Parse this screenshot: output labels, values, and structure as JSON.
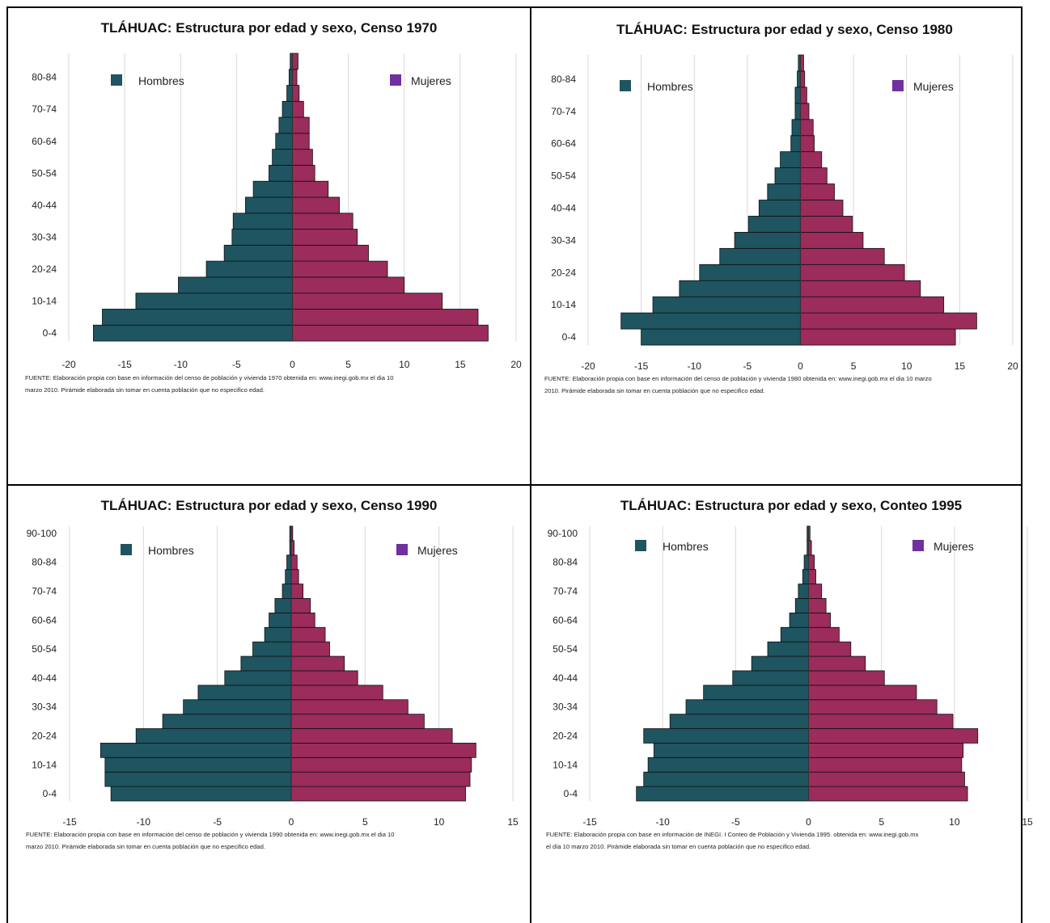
{
  "colors": {
    "hombres": "#1e5560",
    "mujeres": "#9b2c5c",
    "legend_mujeres": "#7030a0"
  },
  "chart_data": [
    {
      "type": "bar",
      "title": "TLÁHUAC: Estructura por edad y sexo, Censo 1970",
      "legend": [
        "Hombres",
        "Mujeres"
      ],
      "xlim": [
        -20,
        20
      ],
      "xticks": [
        -20,
        -15,
        -10,
        -5,
        0,
        5,
        10,
        15,
        20
      ],
      "yticklabels": [
        "0-4",
        "10-14",
        "20-24",
        "30-34",
        "40-44",
        "50-54",
        "60-64",
        "70-74",
        "80-84"
      ],
      "categories": [
        "0-4",
        "5-9",
        "10-14",
        "15-19",
        "20-24",
        "25-29",
        "30-34",
        "35-39",
        "40-44",
        "45-49",
        "50-54",
        "55-59",
        "60-64",
        "65-69",
        "70-74",
        "75-79",
        "80-84",
        "85+"
      ],
      "series": [
        {
          "name": "Hombres",
          "values": [
            17.8,
            17.0,
            14.0,
            10.2,
            7.7,
            6.1,
            5.4,
            5.3,
            4.2,
            3.5,
            2.1,
            1.8,
            1.5,
            1.2,
            0.9,
            0.5,
            0.3,
            0.2
          ]
        },
        {
          "name": "Mujeres",
          "values": [
            17.5,
            16.6,
            13.4,
            10.0,
            8.5,
            6.8,
            5.8,
            5.4,
            4.2,
            3.2,
            2.0,
            1.8,
            1.5,
            1.5,
            1.0,
            0.6,
            0.4,
            0.5
          ]
        }
      ],
      "source": [
        "FUENTE: Elaboración propia con base en información del censo de población y vivienda 1970 obtenida en: www.inegi.gob.mx el dia 10",
        "marzo 2010. Pirámide elaborada sin tomar en cuenta población que no especifico edad."
      ]
    },
    {
      "type": "bar",
      "title": "TLÁHUAC: Estructura por edad y sexo, Censo 1980",
      "legend": [
        "Hombres",
        "Mujeres"
      ],
      "xlim": [
        -20,
        20
      ],
      "xticks": [
        -20,
        -15,
        -10,
        -5,
        0,
        5,
        10,
        15,
        20
      ],
      "yticklabels": [
        "0-4",
        "10-14",
        "20-24",
        "30-34",
        "40-44",
        "50-54",
        "60-64",
        "70-74",
        "80-84"
      ],
      "categories": [
        "0-4",
        "5-9",
        "10-14",
        "15-19",
        "20-24",
        "25-29",
        "30-34",
        "35-39",
        "40-44",
        "45-49",
        "50-54",
        "55-59",
        "60-64",
        "65-69",
        "70-74",
        "75-79",
        "80-84",
        "85+"
      ],
      "series": [
        {
          "name": "Hombres",
          "values": [
            15.0,
            16.9,
            13.9,
            11.4,
            9.5,
            7.6,
            6.2,
            4.9,
            3.9,
            3.1,
            2.4,
            1.9,
            0.9,
            0.8,
            0.5,
            0.5,
            0.3,
            0.2
          ]
        },
        {
          "name": "Mujeres",
          "values": [
            14.6,
            16.6,
            13.5,
            11.3,
            9.8,
            7.9,
            5.9,
            4.9,
            4.0,
            3.2,
            2.5,
            2.0,
            1.3,
            1.2,
            0.8,
            0.6,
            0.4,
            0.3
          ]
        }
      ],
      "source": [
        "FUENTE: Elaboración propia con base en información del censo de población y vivienda 1980 obtenida en: www.inegi.gob.mx el dia 10 marzo",
        "2010. Pirámide elaborada sin tomar en cuenta población que no especifico edad."
      ]
    },
    {
      "type": "bar",
      "title": "TLÁHUAC: Estructura por edad y sexo, Censo 1990",
      "legend": [
        "Hombres",
        "Mujeres"
      ],
      "xlim": [
        -15,
        15
      ],
      "xticks": [
        -15,
        -10,
        -5,
        0,
        5,
        10,
        15
      ],
      "yticklabels": [
        "0-4",
        "10-14",
        "20-24",
        "30-34",
        "40-44",
        "50-54",
        "60-64",
        "70-74",
        "80-84",
        "90-100"
      ],
      "categories": [
        "0-4",
        "5-9",
        "10-14",
        "15-19",
        "20-24",
        "25-29",
        "30-34",
        "35-39",
        "40-44",
        "45-49",
        "50-54",
        "55-59",
        "60-64",
        "65-69",
        "70-74",
        "75-79",
        "80-84",
        "85-89",
        "90-100"
      ],
      "series": [
        {
          "name": "Hombres",
          "values": [
            12.2,
            12.6,
            12.6,
            12.9,
            10.5,
            8.7,
            7.3,
            6.3,
            4.5,
            3.4,
            2.6,
            1.8,
            1.5,
            1.1,
            0.6,
            0.4,
            0.3,
            0.1,
            0.1
          ]
        },
        {
          "name": "Mujeres",
          "values": [
            11.8,
            12.1,
            12.2,
            12.5,
            10.9,
            9.0,
            7.9,
            6.2,
            4.5,
            3.6,
            2.6,
            2.3,
            1.6,
            1.3,
            0.8,
            0.5,
            0.4,
            0.2,
            0.1
          ]
        }
      ],
      "source": [
        "FUENTE: Elaboración propia con base en información del censo de población y vivienda 1990 obtenida en: www.inegi.gob.mx el dia 10",
        "marzo 2010. Pirámide elaborada sin tomar en cuenta población que no especifico edad."
      ]
    },
    {
      "type": "bar",
      "title": "TLÁHUAC: Estructura por edad y sexo, Conteo 1995",
      "legend": [
        "Hombres",
        "Mujeres"
      ],
      "xlim": [
        -15,
        15
      ],
      "xticks": [
        -15,
        -10,
        -5,
        0,
        5,
        10,
        15
      ],
      "yticklabels": [
        "0-4",
        "10-14",
        "20-24",
        "30-34",
        "40-44",
        "50-54",
        "60-64",
        "70-74",
        "80-84",
        "90-100"
      ],
      "categories": [
        "0-4",
        "5-9",
        "10-14",
        "15-19",
        "20-24",
        "25-29",
        "30-34",
        "35-39",
        "40-44",
        "45-49",
        "50-54",
        "55-59",
        "60-64",
        "65-69",
        "70-74",
        "75-79",
        "80-84",
        "85-89",
        "90-100"
      ],
      "series": [
        {
          "name": "Hombres",
          "values": [
            11.8,
            11.3,
            11.0,
            10.6,
            11.3,
            9.5,
            8.4,
            7.2,
            5.2,
            3.9,
            2.8,
            1.9,
            1.3,
            0.9,
            0.7,
            0.4,
            0.3,
            0.1,
            0.1
          ]
        },
        {
          "name": "Mujeres",
          "values": [
            10.9,
            10.7,
            10.5,
            10.6,
            11.6,
            9.9,
            8.8,
            7.4,
            5.2,
            3.9,
            2.9,
            2.1,
            1.5,
            1.2,
            0.9,
            0.5,
            0.4,
            0.2,
            0.1
          ]
        }
      ],
      "source": [
        "FUENTE: Elaboración propia con base en información de INEGI. I Conteo de Población y Vivienda 1995. obtenida en: www.inegi.gob.mx",
        "el día 10 marzo 2010. Pirámide elaborada sin tomar en cuenta población que no especifico edad."
      ]
    }
  ]
}
